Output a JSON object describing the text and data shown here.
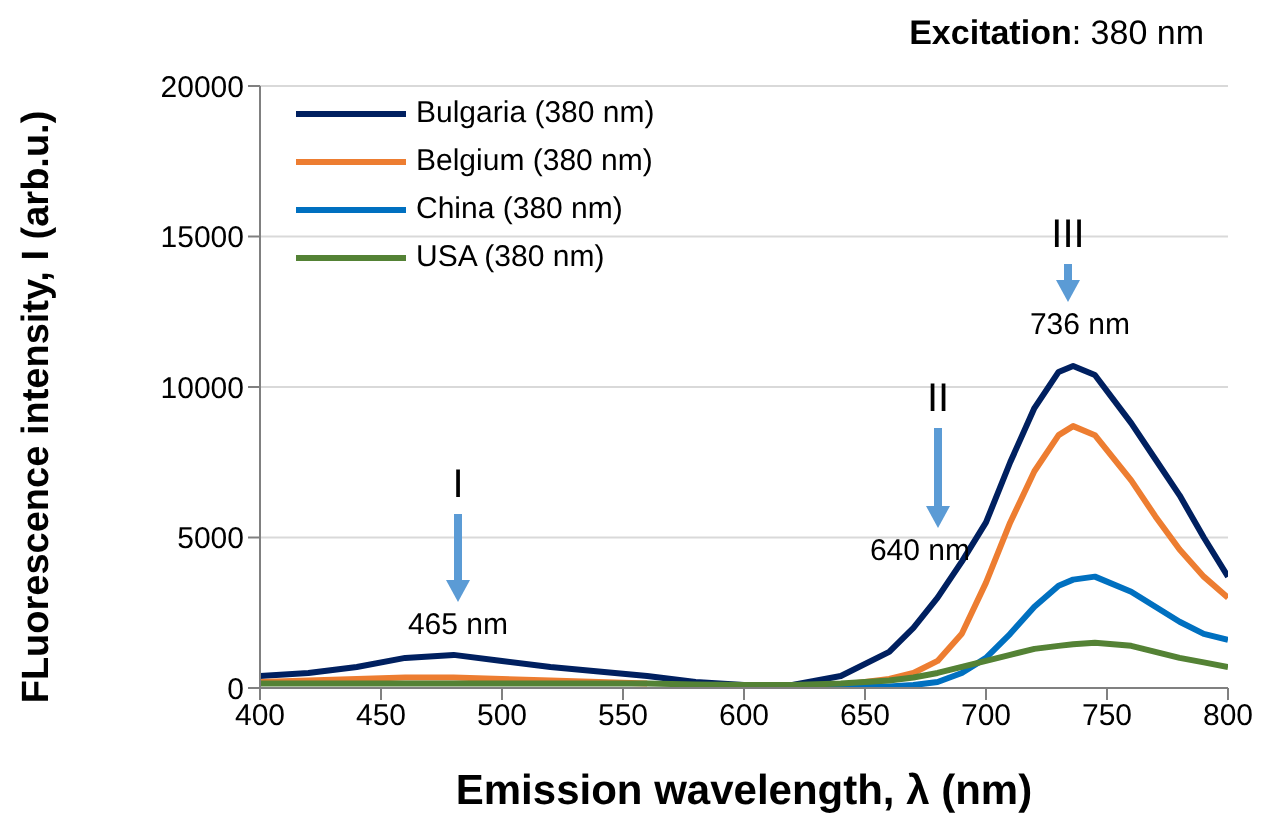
{
  "chart_data": {
    "type": "line",
    "xlabel": "Emission wavelength, λ (nm)",
    "ylabel": "FLuorescence intensity, I (arb.u.)",
    "x": [
      400,
      420,
      440,
      460,
      480,
      500,
      520,
      540,
      560,
      580,
      600,
      620,
      640,
      660,
      670,
      680,
      690,
      700,
      710,
      720,
      730,
      736,
      745,
      760,
      770,
      780,
      790,
      800
    ],
    "series": [
      {
        "name": "Bulgaria (380 nm)",
        "color": "#002060",
        "values": [
          400,
          500,
          700,
          1000,
          1100,
          900,
          700,
          550,
          400,
          200,
          100,
          100,
          400,
          1200,
          2000,
          3000,
          4200,
          5500,
          7500,
          9300,
          10500,
          10700,
          10400,
          8800,
          7600,
          6400,
          5000,
          3700
        ]
      },
      {
        "name": "Belgium (380 nm)",
        "color": "#ed7d31",
        "values": [
          200,
          250,
          300,
          350,
          350,
          300,
          250,
          200,
          150,
          null,
          null,
          null,
          100,
          300,
          500,
          900,
          1800,
          3500,
          5500,
          7200,
          8400,
          8700,
          8400,
          6900,
          5700,
          4600,
          3700,
          3000
        ]
      },
      {
        "name": "China (380 nm)",
        "color": "#0070c0",
        "values": [
          null,
          null,
          null,
          null,
          null,
          null,
          null,
          null,
          null,
          null,
          null,
          50,
          50,
          50,
          100,
          200,
          500,
          1000,
          1800,
          2700,
          3400,
          3600,
          3700,
          3200,
          2700,
          2200,
          1800,
          1600
        ]
      },
      {
        "name": "USA (380 nm)",
        "color": "#548235",
        "values": [
          150,
          150,
          150,
          150,
          150,
          150,
          150,
          150,
          150,
          120,
          100,
          100,
          150,
          250,
          350,
          500,
          700,
          900,
          1100,
          1300,
          1400,
          1450,
          1500,
          1400,
          1200,
          1000,
          850,
          700
        ]
      }
    ],
    "xlim": [
      400,
      800
    ],
    "xticks": [
      400,
      450,
      500,
      550,
      600,
      650,
      700,
      750,
      800
    ],
    "ylim": [
      0,
      20000
    ],
    "yticks": [
      0,
      5000,
      10000,
      15000,
      20000
    ],
    "grid": "y",
    "legend": "top left",
    "marker": "none",
    "line_style": "solid",
    "annotations": [
      "Excitation: 380 nm",
      "I",
      "465 nm",
      "II",
      "640 nm",
      "III",
      "736 nm"
    ]
  }
}
